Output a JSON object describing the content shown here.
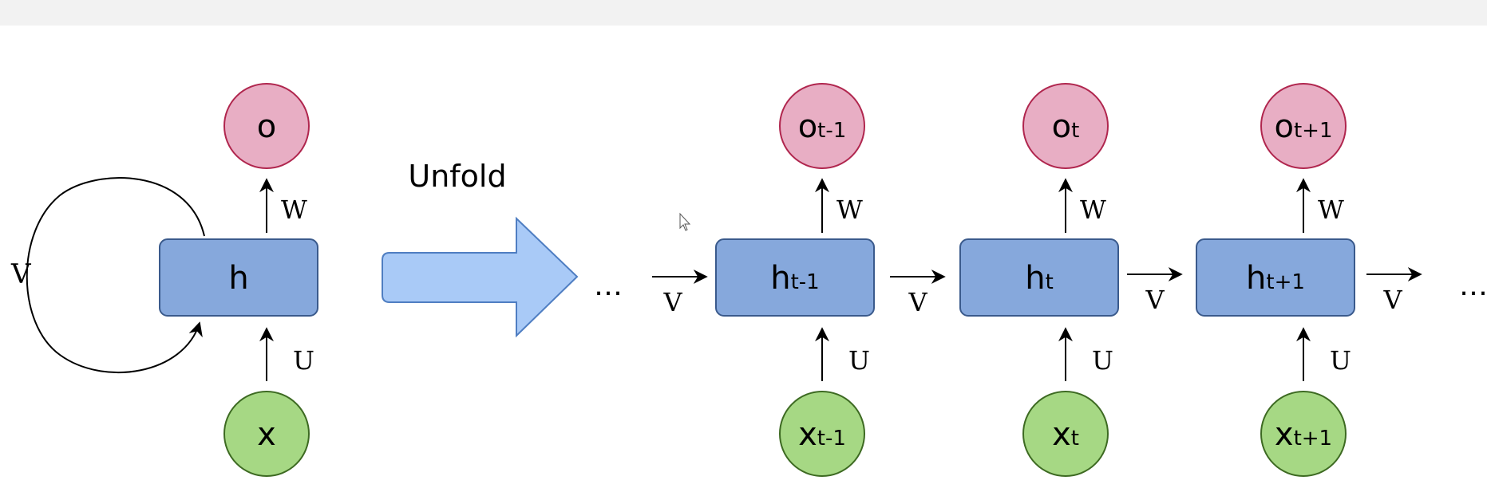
{
  "colors": {
    "output_fill": "#e8aec4",
    "output_stroke": "#b0264e",
    "hidden_fill": "#86a8dc",
    "hidden_stroke": "#3a5a8c",
    "input_fill": "#a6d884",
    "input_stroke": "#3d6a22",
    "arrow_fill": "#a9caf7",
    "arrow_stroke": "#4f7ec2",
    "line": "#000000"
  },
  "folded": {
    "output_label": "o",
    "hidden_label": "h",
    "input_label": "x",
    "w_label": "W",
    "u_label": "U",
    "v_label": "V"
  },
  "unfold_label": "Unfold",
  "ellipsis": "…",
  "steps": [
    {
      "o_base": "o",
      "o_sub": "t-1",
      "h_base": "h",
      "h_sub": "t-1",
      "x_base": "x",
      "x_sub": "t-1",
      "w_label": "W",
      "u_label": "U",
      "v_label": "V"
    },
    {
      "o_base": "o",
      "o_sub": "t",
      "h_base": "h",
      "h_sub": "t",
      "x_base": "x",
      "x_sub": "t",
      "w_label": "W",
      "u_label": "U",
      "v_label": "V"
    },
    {
      "o_base": "o",
      "o_sub": "t+1",
      "h_base": "h",
      "h_sub": "t+1",
      "x_base": "x",
      "x_sub": "t+1",
      "w_label": "W",
      "u_label": "U",
      "v_label": "V"
    }
  ],
  "trailing_v_label": "V"
}
